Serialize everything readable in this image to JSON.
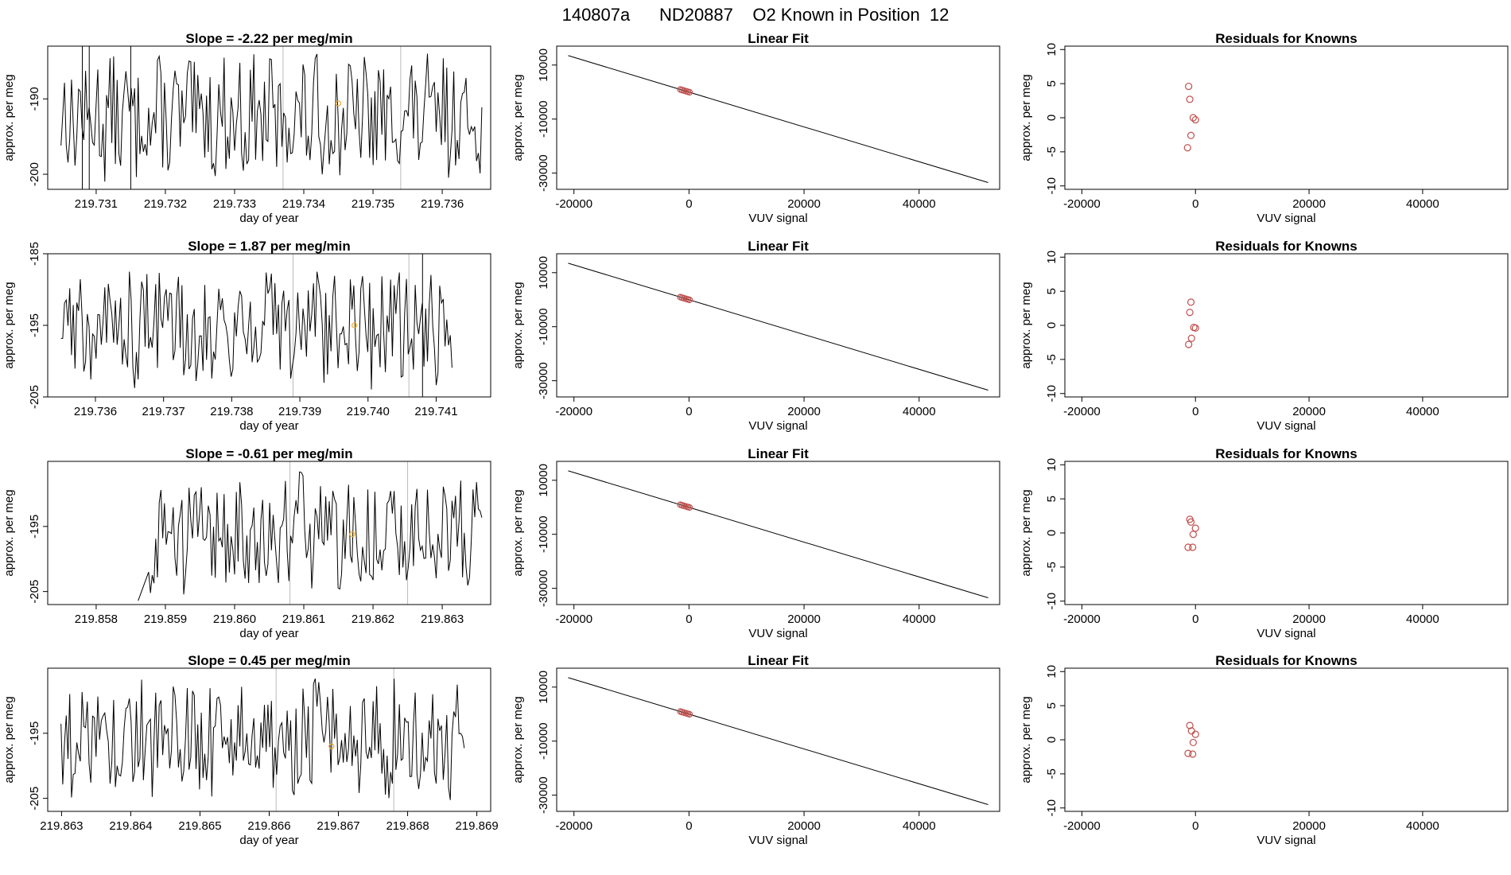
{
  "title": {
    "run_id": "140807a",
    "tank_id": "ND20887",
    "description": "O2 Known in Position  12"
  },
  "colors": {
    "line": "#000000",
    "gray_line": "#bbbbbb",
    "point": "#c0504d",
    "orange": "#f5a623"
  },
  "chart_data": [
    {
      "type": "line",
      "title": "Slope =  -2.22  per meg/min",
      "xlabel": "day of year",
      "ylabel": "approx. per meg",
      "xlim": [
        219.7303,
        219.7367
      ],
      "ylim": [
        -202,
        -183
      ],
      "xticks": [
        219.731,
        219.732,
        219.733,
        219.734,
        219.735,
        219.736
      ],
      "xtick_labels": [
        "219.731",
        "219.732",
        "219.733",
        "219.734",
        "219.735",
        "219.736"
      ],
      "yticks": [
        -190,
        -200
      ],
      "ytick_labels": [
        "-190",
        "-200"
      ],
      "gray_lines": [
        219.7337,
        219.7354
      ],
      "black_lines": [
        219.7308,
        219.7309,
        219.7315
      ],
      "marker": [
        219.7345,
        -190.6
      ]
    },
    {
      "type": "scatter_line",
      "title": "Linear Fit",
      "xlabel": "VUV signal",
      "ylabel": "approx. per meg",
      "xlim": [
        -23000,
        54000
      ],
      "ylim": [
        -36000,
        17000
      ],
      "xticks": [
        -20000,
        0,
        20000,
        40000
      ],
      "xtick_labels": [
        "-20000",
        "0",
        "20000",
        "40000"
      ],
      "yticks": [
        10000,
        -10000,
        -30000
      ],
      "ytick_labels": [
        "10000",
        "-10000",
        "-30000"
      ],
      "fit_line": [
        [
          -21000,
          13500
        ],
        [
          52000,
          -33500
        ]
      ],
      "points_x": [
        -1500,
        -1200,
        -900,
        -500,
        -200,
        100
      ]
    },
    {
      "type": "scatter",
      "title": "Residuals for Knowns",
      "xlabel": "VUV signal",
      "ylabel": "approx. per meg",
      "xlim": [
        -23000,
        55000
      ],
      "ylim": [
        -10.5,
        10.5
      ],
      "xticks": [
        -20000,
        0,
        20000,
        40000
      ],
      "xtick_labels": [
        "-20000",
        "0",
        "20000",
        "40000"
      ],
      "yticks": [
        10,
        5,
        0,
        -5,
        -10
      ],
      "ytick_labels": [
        "10",
        "5",
        "0",
        "-5",
        "-10"
      ],
      "points": [
        [
          -1200,
          4.6
        ],
        [
          -1000,
          2.7
        ],
        [
          -400,
          0
        ],
        [
          0,
          -0.3
        ],
        [
          -800,
          -2.6
        ],
        [
          -1400,
          -4.4
        ]
      ]
    },
    {
      "type": "line",
      "title": "Slope =  1.87  per meg/min",
      "xlabel": "day of year",
      "ylabel": "approx. per meg",
      "xlim": [
        219.7353,
        219.7418
      ],
      "ylim": [
        -205,
        -185
      ],
      "xticks": [
        219.736,
        219.737,
        219.738,
        219.739,
        219.74,
        219.741
      ],
      "xtick_labels": [
        "219.736",
        "219.737",
        "219.738",
        "219.739",
        "219.740",
        "219.741"
      ],
      "yticks": [
        -185,
        -195,
        -205
      ],
      "ytick_labels": [
        "-185",
        "-195",
        "-205"
      ],
      "gray_lines": [
        219.7389,
        219.7406
      ],
      "black_lines": [
        219.7408
      ],
      "marker": [
        219.7398,
        -195
      ]
    },
    {
      "type": "scatter_line",
      "title": "Linear Fit",
      "xlabel": "VUV signal",
      "ylabel": "approx. per meg",
      "xlim": [
        -23000,
        54000
      ],
      "ylim": [
        -36000,
        17000
      ],
      "xticks": [
        -20000,
        0,
        20000,
        40000
      ],
      "xtick_labels": [
        "-20000",
        "0",
        "20000",
        "40000"
      ],
      "yticks": [
        10000,
        -10000,
        -30000
      ],
      "ytick_labels": [
        "10000",
        "-10000",
        "-30000"
      ],
      "fit_line": [
        [
          -21000,
          13500
        ],
        [
          52000,
          -33500
        ]
      ],
      "points_x": [
        -1500,
        -1200,
        -900,
        -500,
        -200,
        100
      ]
    },
    {
      "type": "scatter",
      "title": "Residuals for Knowns",
      "xlabel": "VUV signal",
      "ylabel": "approx. per meg",
      "xlim": [
        -23000,
        55000
      ],
      "ylim": [
        -10.5,
        10.5
      ],
      "xticks": [
        -20000,
        0,
        20000,
        40000
      ],
      "xtick_labels": [
        "-20000",
        "0",
        "20000",
        "40000"
      ],
      "yticks": [
        10,
        5,
        0,
        -5,
        -10
      ],
      "ytick_labels": [
        "10",
        "5",
        "0",
        "-5",
        "-10"
      ],
      "points": [
        [
          -800,
          3.4
        ],
        [
          -1000,
          1.9
        ],
        [
          -300,
          -0.3
        ],
        [
          0,
          -0.4
        ],
        [
          -700,
          -1.9
        ],
        [
          -1200,
          -2.8
        ]
      ]
    },
    {
      "type": "line",
      "title": "Slope =  -0.61  per meg/min",
      "xlabel": "day of year",
      "ylabel": "approx. per meg",
      "xlim": [
        219.8573,
        219.8637
      ],
      "ylim": [
        -207,
        -185
      ],
      "xticks": [
        219.858,
        219.859,
        219.86,
        219.861,
        219.862,
        219.863
      ],
      "xtick_labels": [
        "219.858",
        "219.859",
        "219.860",
        "219.861",
        "219.862",
        "219.863"
      ],
      "yticks": [
        -195,
        -205
      ],
      "ytick_labels": [
        "-195",
        "-205"
      ],
      "gray_lines": [
        219.8608,
        219.8625
      ],
      "black_lines": [],
      "marker": [
        219.8617,
        -196.2
      ]
    },
    {
      "type": "scatter_line",
      "title": "Linear Fit",
      "xlabel": "VUV signal",
      "ylabel": "approx. per meg",
      "xlim": [
        -23000,
        54000
      ],
      "ylim": [
        -36000,
        17000
      ],
      "xticks": [
        -20000,
        0,
        20000,
        40000
      ],
      "xtick_labels": [
        "-20000",
        "0",
        "20000",
        "40000"
      ],
      "yticks": [
        10000,
        -10000,
        -30000
      ],
      "ytick_labels": [
        "10000",
        "-10000",
        "-30000"
      ],
      "fit_line": [
        [
          -21000,
          13500
        ],
        [
          52000,
          -33500
        ]
      ],
      "points_x": [
        -1500,
        -1200,
        -900,
        -500,
        -200,
        100
      ]
    },
    {
      "type": "scatter",
      "title": "Residuals for Knowns",
      "xlabel": "VUV signal",
      "ylabel": "approx. per meg",
      "xlim": [
        -23000,
        55000
      ],
      "ylim": [
        -10.5,
        10.5
      ],
      "xticks": [
        -20000,
        0,
        20000,
        40000
      ],
      "xtick_labels": [
        "-20000",
        "0",
        "20000",
        "40000"
      ],
      "yticks": [
        10,
        5,
        0,
        -5,
        -10
      ],
      "ytick_labels": [
        "10",
        "5",
        "0",
        "-5",
        "-10"
      ],
      "points": [
        [
          -1000,
          2.0
        ],
        [
          -800,
          1.6
        ],
        [
          0,
          0.7
        ],
        [
          -400,
          -0.2
        ],
        [
          -1300,
          -2.1
        ],
        [
          -500,
          -2.1
        ]
      ]
    },
    {
      "type": "line",
      "title": "Slope =  0.45  per meg/min",
      "xlabel": "day of year",
      "ylabel": "approx. per meg",
      "xlim": [
        219.8628,
        219.8692
      ],
      "ylim": [
        -207,
        -185
      ],
      "xticks": [
        219.863,
        219.864,
        219.865,
        219.866,
        219.867,
        219.868,
        219.869
      ],
      "xtick_labels": [
        "219.863",
        "219.864",
        "219.865",
        "219.866",
        "219.867",
        "219.868",
        "219.869"
      ],
      "yticks": [
        -195,
        -205
      ],
      "ytick_labels": [
        "-195",
        "-205"
      ],
      "gray_lines": [
        219.8661,
        219.8678
      ],
      "black_lines": [],
      "marker": [
        219.8669,
        -197
      ]
    },
    {
      "type": "scatter_line",
      "title": "Linear Fit",
      "xlabel": "VUV signal",
      "ylabel": "approx. per meg",
      "xlim": [
        -23000,
        54000
      ],
      "ylim": [
        -36000,
        17000
      ],
      "xticks": [
        -20000,
        0,
        20000,
        40000
      ],
      "xtick_labels": [
        "-20000",
        "0",
        "20000",
        "40000"
      ],
      "yticks": [
        10000,
        -10000,
        -30000
      ],
      "ytick_labels": [
        "10000",
        "-10000",
        "-30000"
      ],
      "fit_line": [
        [
          -21000,
          13500
        ],
        [
          52000,
          -33500
        ]
      ],
      "points_x": [
        -1500,
        -1200,
        -900,
        -500,
        -200,
        100
      ]
    },
    {
      "type": "scatter",
      "title": "Residuals for Knowns",
      "xlabel": "VUV signal",
      "ylabel": "approx. per meg",
      "xlim": [
        -23000,
        55000
      ],
      "ylim": [
        -10.5,
        10.5
      ],
      "xticks": [
        -20000,
        0,
        20000,
        40000
      ],
      "xtick_labels": [
        "-20000",
        "0",
        "20000",
        "40000"
      ],
      "yticks": [
        10,
        5,
        0,
        -5,
        -10
      ],
      "ytick_labels": [
        "10",
        "5",
        "0",
        "-5",
        "-10"
      ],
      "points": [
        [
          -1000,
          2.1
        ],
        [
          -700,
          1.3
        ],
        [
          0,
          0.8
        ],
        [
          -400,
          -0.4
        ],
        [
          -1300,
          -2.0
        ],
        [
          -500,
          -2.1
        ]
      ]
    }
  ]
}
